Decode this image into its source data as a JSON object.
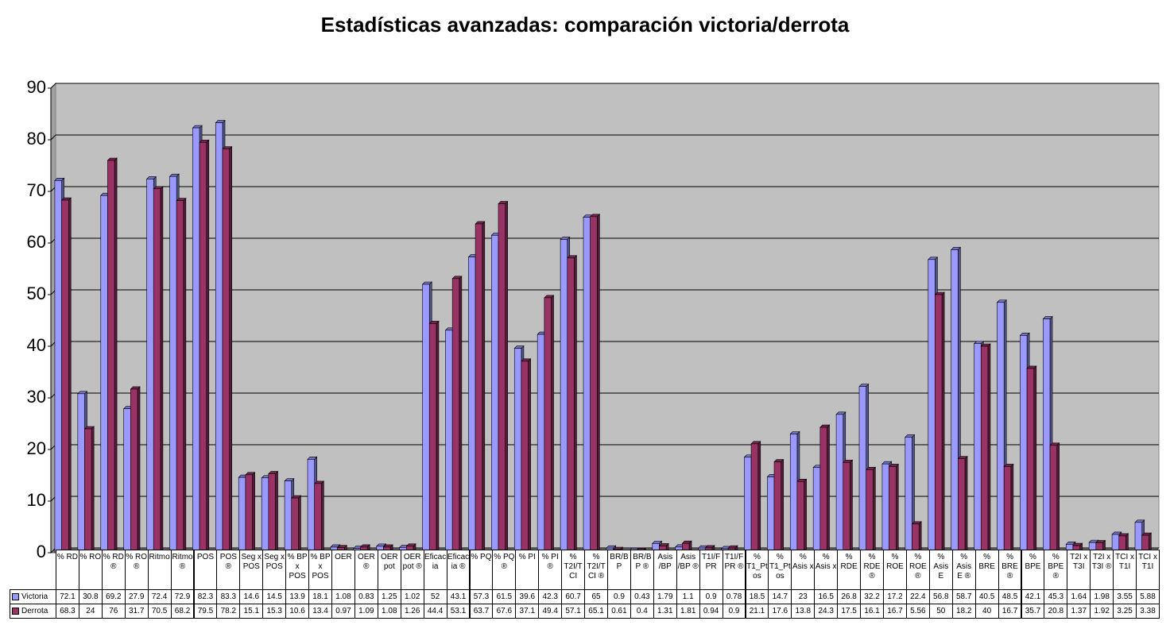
{
  "chart_data": {
    "type": "bar",
    "title": "Estadísticas avanzadas: comparación victoria/derrota",
    "categories": [
      "% RD",
      "% RO",
      "% RD ®",
      "% RO ®",
      "Ritmo",
      "Ritmo ®",
      "POS",
      "POS ®",
      "Seg x POS",
      "Seg x POS",
      "% BP x POS",
      "% BP x POS",
      "OER",
      "OER ®",
      "OER pot",
      "OER pot ®",
      "Eficacia",
      "Eficacia ®",
      "% PQ",
      "% PQ ®",
      "% PI",
      "% PI ®",
      "% T2I/TCI",
      "% T2I/TCI ®",
      "BR/BP",
      "BR/BP ®",
      "Asis /BP",
      "Asis /BP ®",
      "T1I/FPR",
      "T1I/FPR ®",
      "% T1_Ptos",
      "% T1_Ptos",
      "% Asis x",
      "% Asis x",
      "% RDE",
      "% RDE ®",
      "% ROE",
      "% ROE ®",
      "% Asis E",
      "% Asis E ®",
      "% BRE",
      "% BRE ®",
      "% BPE",
      "% BPE ®",
      "T2I x T3I",
      "T2I x T3I ®",
      "TCI x T1I",
      "TCI x T1I"
    ],
    "series": [
      {
        "name": "Victoria",
        "color": "#9999ff",
        "values": [
          72.1,
          30.8,
          69.2,
          27.9,
          72.4,
          72.9,
          82.3,
          83.3,
          14.6,
          14.5,
          13.9,
          18.1,
          1.08,
          0.83,
          1.25,
          1.02,
          52,
          43.1,
          57.3,
          61.5,
          39.6,
          42.3,
          60.7,
          65,
          0.9,
          0.43,
          1.79,
          1.1,
          0.9,
          0.78,
          18.5,
          14.7,
          23,
          16.5,
          26.8,
          32.2,
          17.2,
          22.4,
          56.8,
          58.7,
          40.5,
          48.5,
          42.1,
          45.3,
          1.64,
          1.98,
          3.55,
          5.88
        ]
      },
      {
        "name": "Derrota",
        "color": "#993366",
        "values": [
          68.3,
          24,
          76,
          31.7,
          70.5,
          68.2,
          79.5,
          78.2,
          15.1,
          15.3,
          10.6,
          13.4,
          0.97,
          1.09,
          1.08,
          1.26,
          44.4,
          53.1,
          63.7,
          67.6,
          37.1,
          49.4,
          57.1,
          65.1,
          0.61,
          0.4,
          1.31,
          1.81,
          0.94,
          0.9,
          21.1,
          17.6,
          13.8,
          24.3,
          17.5,
          16.1,
          16.7,
          5.56,
          50,
          18.2,
          40,
          16.7,
          35.7,
          20.8,
          1.37,
          1.92,
          3.25,
          3.38
        ]
      }
    ],
    "ylim": [
      0,
      90
    ],
    "yticks": [
      0,
      10,
      20,
      30,
      40,
      50,
      60,
      70,
      80,
      90
    ],
    "grid": true
  }
}
